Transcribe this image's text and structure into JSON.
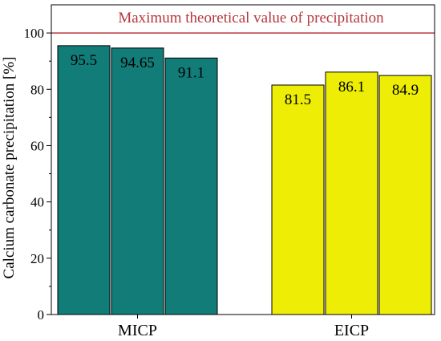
{
  "chart_data": {
    "type": "bar",
    "ylabel": "Calcium carbonate precipitation [%]",
    "xlabel": "",
    "ylim": [
      0,
      110
    ],
    "yticks": [
      0,
      20,
      40,
      60,
      80,
      100
    ],
    "grid": false,
    "groups": [
      {
        "category": "MICP",
        "color": "#127c78",
        "values": [
          95.5,
          94.65,
          91.1
        ],
        "labels": [
          "95.5",
          "94.65",
          "91.1"
        ]
      },
      {
        "category": "EICP",
        "color": "#eded05",
        "values": [
          81.5,
          86.1,
          84.9
        ],
        "labels": [
          "81.5",
          "86.1",
          "84.9"
        ]
      }
    ],
    "reference_line": {
      "value": 100,
      "label": "Maximum theoretical value of precipitation",
      "color": "#b5373d"
    }
  }
}
